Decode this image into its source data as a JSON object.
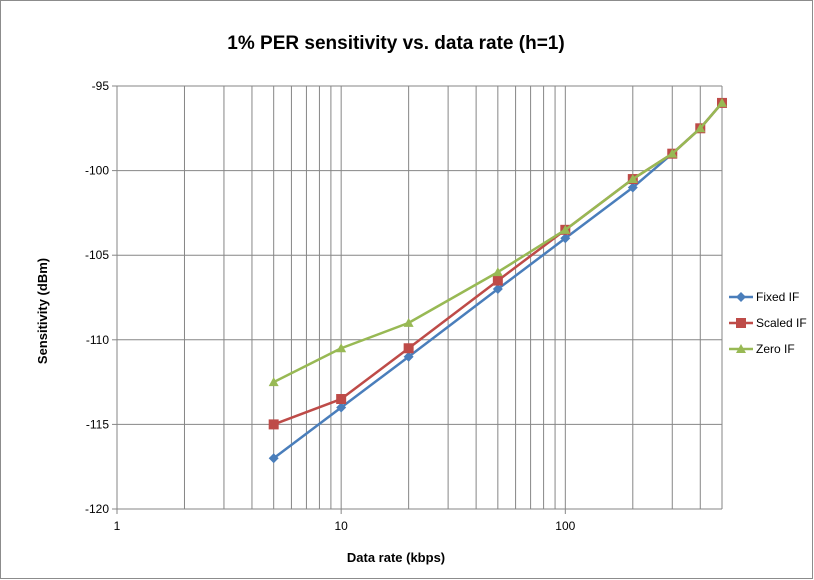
{
  "chart_data": {
    "type": "line",
    "title": "1% PER sensitivity vs. data rate (h=1)",
    "xlabel": "Data rate (kbps)",
    "ylabel": "Sensitivity (dBm)",
    "x_scale": "log",
    "xlim": [
      1,
      500
    ],
    "ylim": [
      -120,
      -95
    ],
    "x_ticks": [
      1,
      10,
      100
    ],
    "y_ticks": [
      -120,
      -115,
      -110,
      -105,
      -100,
      -95
    ],
    "grid": true,
    "legend_position": "right",
    "x": [
      5,
      10,
      20,
      50,
      100,
      200,
      300,
      400,
      500
    ],
    "series": [
      {
        "name": "Fixed IF",
        "color": "#4a7ebb",
        "marker": "diamond",
        "values": [
          -117,
          -114,
          -111,
          -107,
          -104,
          -101,
          -99,
          -97.5,
          -96
        ]
      },
      {
        "name": "Scaled IF",
        "color": "#be4b48",
        "marker": "square",
        "values": [
          -115,
          -113.5,
          -110.5,
          -106.5,
          -103.5,
          -100.5,
          -99,
          -97.5,
          -96
        ]
      },
      {
        "name": "Zero IF",
        "color": "#98b954",
        "marker": "triangle",
        "values": [
          -112.5,
          -110.5,
          -109,
          -106,
          -103.5,
          -100.5,
          -99,
          -97.5,
          -96
        ]
      }
    ]
  }
}
